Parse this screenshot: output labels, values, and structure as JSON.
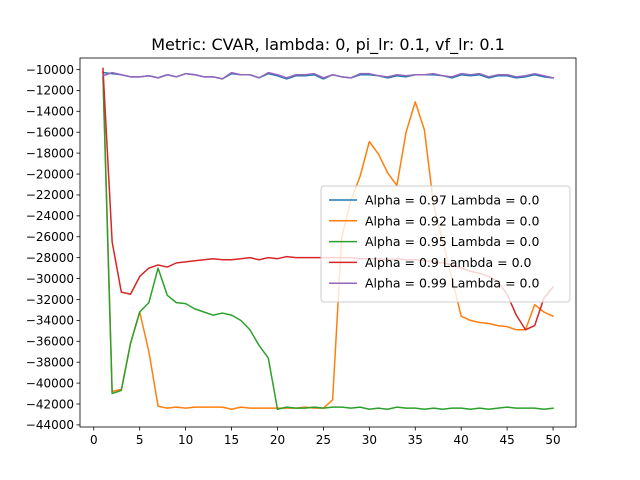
{
  "chart_data": {
    "type": "line",
    "title": "Metric: CVAR, lambda: 0, pi_lr: 0.1, vf_lr: 0.1",
    "xlabel": "",
    "ylabel": "",
    "xlim": [
      -1.5,
      52.5
    ],
    "ylim": [
      -44200,
      -8900
    ],
    "xticks": [
      0,
      5,
      10,
      15,
      20,
      25,
      30,
      35,
      40,
      45,
      50
    ],
    "yticks": [
      -44000,
      -42000,
      -40000,
      -38000,
      -36000,
      -34000,
      -32000,
      -30000,
      -28000,
      -26000,
      -24000,
      -22000,
      -20000,
      -18000,
      -16000,
      -14000,
      -12000,
      -10000
    ],
    "grid": false,
    "legend_position": "center-right",
    "x": [
      1,
      2,
      3,
      4,
      5,
      6,
      7,
      8,
      9,
      10,
      11,
      12,
      13,
      14,
      15,
      16,
      17,
      18,
      19,
      20,
      21,
      22,
      23,
      24,
      25,
      26,
      27,
      28,
      29,
      30,
      31,
      32,
      33,
      34,
      35,
      36,
      37,
      38,
      39,
      40,
      41,
      42,
      43,
      44,
      45,
      46,
      47,
      48,
      49,
      50
    ],
    "series": [
      {
        "name": "Alpha = 0.97  Lambda = 0.0",
        "color": "#1f77b4",
        "values": [
          -10300,
          -10400,
          -10500,
          -10700,
          -10700,
          -10600,
          -10800,
          -10500,
          -10700,
          -10400,
          -10500,
          -10700,
          -10700,
          -10900,
          -10400,
          -10500,
          -10500,
          -10800,
          -10400,
          -10600,
          -10900,
          -10600,
          -10600,
          -10500,
          -10900,
          -10500,
          -10700,
          -10800,
          -10500,
          -10500,
          -10600,
          -10800,
          -10600,
          -10700,
          -10500,
          -10500,
          -10500,
          -10600,
          -10800,
          -10500,
          -10600,
          -10500,
          -10800,
          -10600,
          -10600,
          -10800,
          -10700,
          -10500,
          -10700,
          -10800
        ]
      },
      {
        "name": "Alpha = 0.92  Lambda = 0.0",
        "color": "#ff7f0e",
        "values": [
          -10200,
          -40800,
          -40600,
          -36200,
          -33200,
          -37000,
          -42200,
          -42400,
          -42300,
          -42400,
          -42300,
          -42300,
          -42300,
          -42300,
          -42500,
          -42300,
          -42400,
          -42400,
          -42400,
          -42400,
          -42400,
          -42400,
          -42300,
          -42400,
          -42400,
          -41600,
          -26000,
          -22500,
          -20200,
          -16900,
          -18100,
          -19900,
          -21100,
          -16000,
          -13100,
          -15800,
          -23000,
          -26500,
          -30000,
          -33600,
          -34000,
          -34200,
          -34300,
          -34500,
          -34600,
          -34900,
          -34900,
          -32500,
          -33200,
          -33600
        ]
      },
      {
        "name": "Alpha = 0.95  Lambda = 0.0",
        "color": "#2ca02c",
        "values": [
          -10700,
          -41000,
          -40700,
          -36200,
          -33200,
          -32300,
          -29000,
          -31600,
          -32300,
          -32400,
          -32900,
          -33200,
          -33500,
          -33300,
          -33500,
          -34000,
          -34900,
          -36400,
          -37600,
          -42500,
          -42300,
          -42400,
          -42400,
          -42300,
          -42400,
          -42300,
          -42300,
          -42400,
          -42300,
          -42500,
          -42400,
          -42500,
          -42300,
          -42400,
          -42400,
          -42500,
          -42400,
          -42500,
          -42400,
          -42400,
          -42500,
          -42400,
          -42500,
          -42400,
          -42300,
          -42400,
          -42400,
          -42400,
          -42500,
          -42400
        ]
      },
      {
        "name": "Alpha = 0.9  Lambda = 0.0",
        "color": "#d62728",
        "values": [
          -9900,
          -26500,
          -31300,
          -31500,
          -29800,
          -29000,
          -28700,
          -28900,
          -28500,
          -28400,
          -28300,
          -28200,
          -28100,
          -28200,
          -28200,
          -28100,
          -28000,
          -28200,
          -28000,
          -28100,
          -27900,
          -28000,
          -28000,
          -28000,
          -28000,
          -28000,
          -28000,
          -28000,
          -28100,
          -28100,
          -28100,
          -28200,
          -28100,
          -28200,
          -28200,
          -28300,
          -28400,
          -28500,
          -28700,
          -29000,
          -29300,
          -29500,
          -29800,
          -30300,
          -31500,
          -33500,
          -34900,
          -34500,
          -31900,
          -30800
        ]
      },
      {
        "name": "Alpha = 0.99  Lambda = 0.0",
        "color": "#9467bd",
        "values": [
          -10600,
          -10300,
          -10500,
          -10700,
          -10700,
          -10600,
          -10800,
          -10500,
          -10700,
          -10400,
          -10500,
          -10700,
          -10700,
          -10900,
          -10300,
          -10500,
          -10500,
          -10800,
          -10300,
          -10500,
          -10800,
          -10500,
          -10500,
          -10400,
          -10800,
          -10500,
          -10700,
          -10800,
          -10400,
          -10400,
          -10600,
          -10700,
          -10500,
          -10600,
          -10500,
          -10500,
          -10400,
          -10600,
          -10700,
          -10400,
          -10500,
          -10400,
          -10700,
          -10500,
          -10500,
          -10700,
          -10600,
          -10400,
          -10600,
          -10800
        ]
      }
    ]
  }
}
